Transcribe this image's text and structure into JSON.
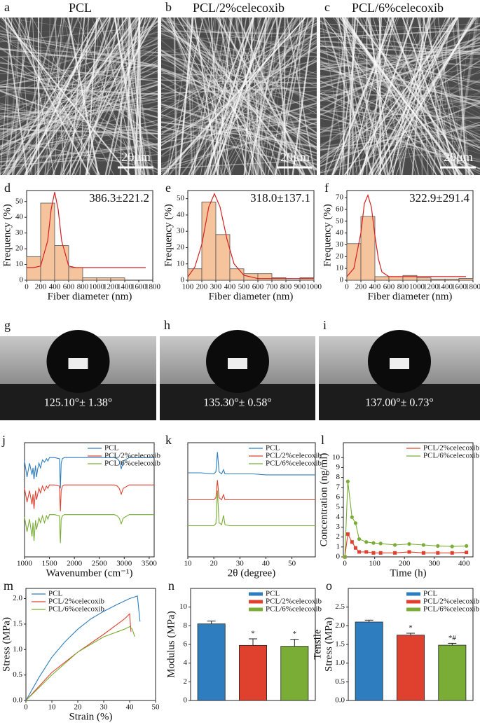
{
  "sem_images": [
    {
      "letter": "a",
      "title": "PCL",
      "scale_bar": "20μm"
    },
    {
      "letter": "b",
      "title": "PCL/2%celecoxib",
      "scale_bar": "20μm"
    },
    {
      "letter": "c",
      "title": "PCL/6%celecoxib",
      "scale_bar": "20μm"
    }
  ],
  "contact_angle_images": [
    {
      "letter": "g",
      "angle": "125.10°± 1.38°"
    },
    {
      "letter": "h",
      "angle": "135.30°± 0.58°"
    },
    {
      "letter": "i",
      "angle": "137.00°± 0.73°"
    }
  ],
  "chart_data": [
    {
      "type": "histogram",
      "letter": "d",
      "annotation": "386.3±221.2",
      "xlabel": "Fiber diameter (nm)",
      "ylabel": "Frequency (%)",
      "color": "#f5c39c",
      "bins": [
        0,
        200,
        400,
        600,
        800,
        1000,
        1200,
        1400
      ],
      "counts": [
        15,
        49,
        22,
        8,
        1.5,
        1.5,
        1.5
      ],
      "fit": {
        "color": "#d42020",
        "x": [
          0,
          100,
          200,
          300,
          350,
          400,
          450,
          500,
          600,
          700,
          800,
          1000,
          1400,
          1700
        ],
        "values": [
          8,
          8,
          9,
          25,
          45,
          56,
          45,
          25,
          9,
          8,
          8,
          8,
          8,
          8
        ]
      },
      "xlim": [
        0,
        1800
      ],
      "xticks": [
        0,
        200,
        400,
        600,
        800,
        1000,
        1200,
        1400,
        1600,
        1800
      ],
      "ylim": [
        0,
        57
      ],
      "yticks": [
        0,
        10,
        20,
        30,
        40,
        50
      ]
    },
    {
      "type": "histogram",
      "letter": "e",
      "annotation": "318.0±137.1",
      "xlabel": "Fiber diameter (nm)",
      "ylabel": "Frequency (%)",
      "color": "#f5c39c",
      "bins": [
        100,
        200,
        300,
        400,
        500,
        600,
        700,
        800,
        900,
        1000
      ],
      "counts": [
        7,
        48,
        28,
        7,
        4,
        4,
        1.5,
        0,
        1.5
      ],
      "fit": {
        "color": "#d42020",
        "x": [
          100,
          150,
          200,
          250,
          290,
          330,
          380,
          430,
          500,
          600,
          700,
          800,
          1000
        ],
        "values": [
          2,
          8,
          22,
          45,
          53,
          45,
          25,
          10,
          3,
          1,
          1,
          1,
          1
        ]
      },
      "xlim": [
        100,
        1000
      ],
      "xticks": [
        100,
        200,
        300,
        400,
        500,
        600,
        700,
        800,
        900,
        1000
      ],
      "ylim": [
        0,
        55
      ],
      "yticks": [
        0,
        10,
        20,
        30,
        40,
        50
      ]
    },
    {
      "type": "histogram",
      "letter": "f",
      "annotation": "322.9±291.4",
      "xlabel": "Fiber diameter (nm)",
      "ylabel": "Frequency (%)",
      "color": "#f5c39c",
      "bins": [
        0,
        200,
        400,
        600,
        800,
        1000,
        1200,
        1400,
        1600,
        1800
      ],
      "counts": [
        31,
        54,
        3,
        3,
        4,
        2,
        1,
        1,
        1.5
      ],
      "fit": {
        "color": "#d42020",
        "x": [
          0,
          100,
          200,
          250,
          300,
          350,
          400,
          450,
          500,
          600,
          800,
          1200,
          1700
        ],
        "values": [
          3,
          10,
          40,
          65,
          72,
          62,
          38,
          18,
          7,
          3,
          3,
          3,
          3
        ]
      },
      "xlim": [
        0,
        1800
      ],
      "xticks": [
        0,
        200,
        400,
        600,
        800,
        1000,
        1200,
        1400,
        1600,
        1800
      ],
      "ylim": [
        0,
        76
      ],
      "yticks": [
        0,
        10,
        20,
        30,
        40,
        50,
        60,
        70
      ]
    },
    {
      "type": "line",
      "letter": "j",
      "xlabel": "Wavenumber (cm⁻¹)",
      "xlim": [
        1000,
        3600
      ],
      "xticks": [
        1000,
        1500,
        2000,
        2500,
        3000,
        3500
      ],
      "ylim": [
        0,
        100
      ],
      "legend": "top-right",
      "x": [
        1000,
        1050,
        1100,
        1150,
        1170,
        1190,
        1220,
        1240,
        1260,
        1290,
        1320,
        1360,
        1400,
        1440,
        1470,
        1500,
        1600,
        1700,
        1720,
        1735,
        1760,
        1800,
        2000,
        2200,
        2400,
        2600,
        2800,
        2860,
        2900,
        2940,
        2980,
        3100,
        3300,
        3600
      ],
      "series": [
        {
          "name": "PCL",
          "color": "#2e7ebf",
          "values": [
            84,
            70,
            82,
            72,
            78,
            68,
            80,
            70,
            76,
            82,
            78,
            85,
            83,
            86,
            84,
            87,
            87,
            86,
            60,
            82,
            86,
            87,
            87,
            87,
            87,
            87,
            87,
            86,
            84,
            77,
            84,
            87,
            87,
            87
          ]
        },
        {
          "name": "PCL/2%celecoxib",
          "color": "#e0412f",
          "values": [
            60,
            48,
            58,
            46,
            55,
            42,
            58,
            50,
            54,
            60,
            56,
            62,
            58,
            62,
            60,
            63,
            63,
            62,
            40,
            58,
            62,
            63,
            63,
            63,
            63,
            63,
            63,
            62,
            60,
            55,
            60,
            63,
            63,
            63
          ]
        },
        {
          "name": "PCL/6%celecoxib",
          "color": "#7aad35",
          "values": [
            35,
            22,
            33,
            18,
            30,
            14,
            32,
            24,
            28,
            34,
            30,
            36,
            30,
            36,
            33,
            37,
            37,
            36,
            12,
            33,
            36,
            37,
            37,
            37,
            37,
            37,
            37,
            36,
            34,
            29,
            34,
            37,
            37,
            37
          ]
        }
      ]
    },
    {
      "type": "line",
      "letter": "k",
      "xlabel": "2θ (degree)",
      "xlim": [
        10,
        59
      ],
      "xticks": [
        10,
        20,
        30,
        40,
        50
      ],
      "ylim": [
        0,
        110
      ],
      "legend": "top-right",
      "x": [
        10,
        15,
        20,
        20.8,
        21.4,
        22,
        23,
        23.7,
        24.3,
        26,
        30,
        35,
        40,
        45,
        50,
        55,
        59
      ],
      "series": [
        {
          "name": "PCL",
          "color": "#2e7ebf",
          "values": [
            81,
            81,
            80,
            82,
            101,
            82,
            80,
            84,
            80,
            80,
            80,
            80,
            79,
            79,
            79,
            79,
            79
          ]
        },
        {
          "name": "PCL/2%celecoxib",
          "color": "#e0412f",
          "values": [
            55,
            55,
            55,
            57,
            74,
            57,
            55,
            60,
            55,
            55,
            55,
            55,
            55,
            55,
            55,
            55,
            55
          ]
        },
        {
          "name": "PCL/6%celecoxib",
          "color": "#7aad35",
          "values": [
            30,
            30,
            30,
            32,
            64,
            33,
            31,
            40,
            31,
            30,
            30,
            30,
            30,
            30,
            30,
            30,
            30
          ]
        }
      ]
    },
    {
      "type": "line",
      "letter": "l",
      "xlabel": "Time (h)",
      "ylabel": "Concentration (ng/ml)",
      "xlim": [
        -5,
        430
      ],
      "xticks": [
        0,
        100,
        200,
        300,
        400
      ],
      "ylim": [
        0,
        11.5
      ],
      "yticks": [
        0,
        1,
        2,
        3,
        4,
        5,
        6,
        7,
        8,
        9,
        10
      ],
      "legend": "top-right",
      "markers": true,
      "x": [
        0,
        10,
        24,
        36,
        48,
        72,
        96,
        120,
        168,
        216,
        264,
        312,
        360,
        408
      ],
      "series": [
        {
          "name": "PCL/2%celecoxib",
          "color": "#e0412f",
          "marker": "square",
          "values": [
            0,
            2.3,
            1.5,
            0.9,
            0.5,
            0.5,
            0.4,
            0.4,
            0.4,
            0.5,
            0.4,
            0.4,
            0.4,
            0.45
          ]
        },
        {
          "name": "PCL/6%celecoxib",
          "color": "#7aad35",
          "marker": "circle",
          "values": [
            0,
            7.6,
            4.0,
            3.4,
            1.8,
            1.5,
            1.4,
            1.35,
            1.2,
            1.3,
            1.2,
            1.1,
            1.05,
            1.1
          ]
        }
      ]
    },
    {
      "type": "xyline",
      "letter": "m",
      "xlabel": "Strain (%)",
      "ylabel": "Stress (MPa)",
      "xlim": [
        0,
        50
      ],
      "xticks": [
        0,
        10,
        20,
        30,
        40,
        50
      ],
      "ylim": [
        0,
        2.2
      ],
      "yticks": [
        {
          "value": 0,
          "label": "0.0"
        },
        0.5,
        {
          "value": 1,
          "label": "1.0"
        },
        1.5,
        {
          "value": 2,
          "label": "2.0"
        }
      ],
      "legend": "top-left",
      "series": [
        {
          "name": "PCL",
          "color": "#2e7ebf",
          "x": [
            0,
            5,
            10,
            15,
            20,
            25,
            30,
            35,
            40,
            43,
            44
          ],
          "values": [
            0,
            0.45,
            0.85,
            1.15,
            1.4,
            1.6,
            1.75,
            1.88,
            2.0,
            2.05,
            1.55
          ]
        },
        {
          "name": "PCL/2%celecoxib",
          "color": "#e0412f",
          "x": [
            0,
            10,
            20,
            30,
            38,
            40,
            40.5
          ],
          "values": [
            0,
            0.55,
            0.95,
            1.3,
            1.6,
            1.7,
            1.35
          ]
        },
        {
          "name": "PCL/6%celecoxib",
          "color": "#7aad35",
          "x": [
            0,
            10,
            20,
            30,
            38,
            40,
            41,
            42
          ],
          "values": [
            0,
            0.5,
            0.95,
            1.25,
            1.4,
            1.45,
            1.4,
            1.25
          ]
        }
      ]
    },
    {
      "type": "bar",
      "letter": "n",
      "ylabel": "Modulus (MPa)",
      "ylim": [
        0,
        12
      ],
      "yticks": [
        0,
        2,
        4,
        6,
        8,
        10
      ],
      "legend": "top-right",
      "series": [
        {
          "name": "PCL",
          "color": "#2e7ebf",
          "values": [
            8.2
          ],
          "errors": [
            0.3
          ]
        },
        {
          "name": "PCL/2%celecoxib",
          "color": "#e0412f",
          "values": [
            5.9
          ],
          "errors": [
            0.7
          ],
          "annotation": "*"
        },
        {
          "name": "PCL/6%celecoxib",
          "color": "#7aad35",
          "values": [
            5.8
          ],
          "errors": [
            0.75
          ],
          "annotation": "*"
        }
      ]
    },
    {
      "type": "bar",
      "letter": "o",
      "ylabel": [
        "Tensile",
        "Stress (MPa)"
      ],
      "ylim": [
        0,
        3
      ],
      "yticks": [
        {
          "value": 0,
          "label": "0.0"
        },
        0.5,
        {
          "value": 1,
          "label": "1.0"
        },
        1.5,
        {
          "value": 2,
          "label": "2.0"
        },
        2.5
      ],
      "legend": "top-right",
      "series": [
        {
          "name": "PCL",
          "color": "#2e7ebf",
          "values": [
            2.1
          ],
          "errors": [
            0.05
          ]
        },
        {
          "name": "PCL/2%celecoxib",
          "color": "#e0412f",
          "values": [
            1.75
          ],
          "errors": [
            0.05
          ],
          "annotation": "*"
        },
        {
          "name": "PCL/6%celecoxib",
          "color": "#7aad35",
          "values": [
            1.48
          ],
          "errors": [
            0.05
          ],
          "annotation": "*#"
        }
      ]
    }
  ]
}
